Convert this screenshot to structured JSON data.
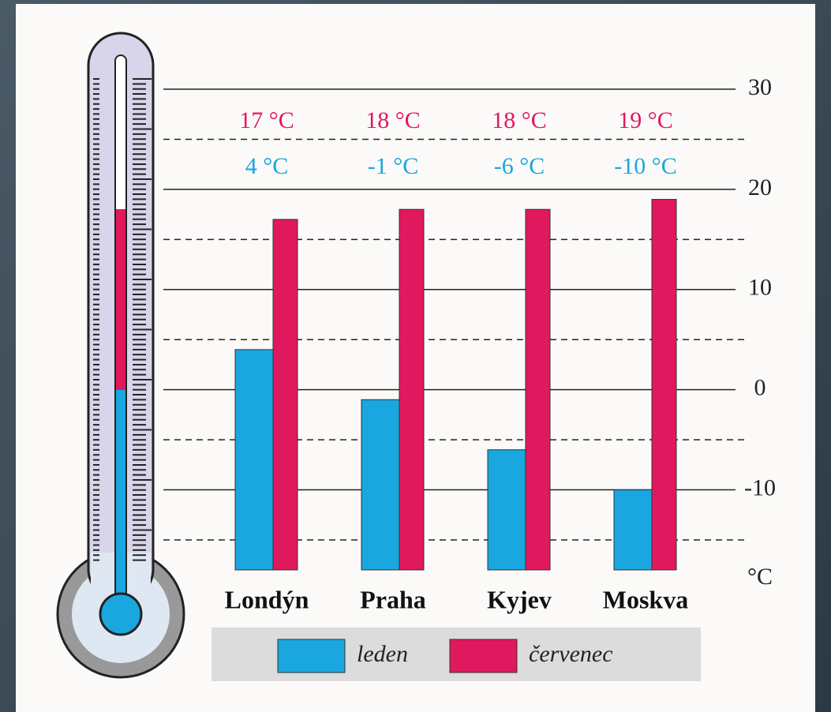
{
  "chart_data": {
    "type": "bar",
    "categories": [
      "Londýn",
      "Praha",
      "Kyjev",
      "Moskva"
    ],
    "series": [
      {
        "name": "leden",
        "color": "#1aa6df",
        "values": [
          4,
          -1,
          -6,
          -10
        ],
        "value_labels": [
          "4 °C",
          "-1 °C",
          "-6 °C",
          "-10 °C"
        ]
      },
      {
        "name": "červenec",
        "color": "#e0195f",
        "values": [
          17,
          18,
          18,
          19
        ],
        "value_labels": [
          "17 °C",
          "18 °C",
          "18 °C",
          "19 °C"
        ]
      }
    ],
    "y_label": "°C",
    "ylim": [
      -18,
      30
    ],
    "yticks": [
      -10,
      0,
      10,
      20,
      30
    ],
    "yticks_minor": [
      -15,
      -5,
      5,
      15,
      25
    ],
    "grid": true
  }
}
